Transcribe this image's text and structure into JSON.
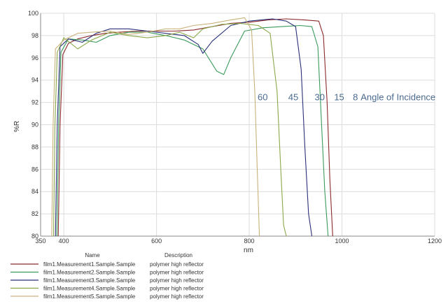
{
  "chart_data": {
    "type": "line",
    "title": "",
    "xlabel": "nm",
    "ylabel": "%R",
    "xlim": [
      350,
      1200
    ],
    "ylim": [
      80,
      100
    ],
    "xticks": [
      350,
      400,
      600,
      800,
      1000,
      1200
    ],
    "yticks": [
      80,
      82,
      84,
      86,
      88,
      90,
      92,
      94,
      96,
      98,
      100
    ],
    "grid": true,
    "legend_position": "bottom",
    "legend_headers": {
      "name": "Name",
      "description": "Description"
    },
    "annotations": [
      {
        "text": "60",
        "x": 829,
        "y": 92.5
      },
      {
        "text": "45",
        "x": 895,
        "y": 92.5
      },
      {
        "text": "30",
        "x": 952,
        "y": 92.5
      },
      {
        "text": "15",
        "x": 994,
        "y": 92.5
      },
      {
        "text": "8",
        "x": 1029,
        "y": 92.5
      },
      {
        "text": "Angle of Incidence",
        "x": 1121,
        "y": 92.5
      }
    ],
    "series": [
      {
        "name": "film1.Measurement1.Sample.Sample",
        "description": "polymer high reflector",
        "color": "#8b2a2a",
        "x": [
          388,
          392,
          398,
          410,
          430,
          460,
          490,
          520,
          560,
          600,
          640,
          680,
          720,
          760,
          800,
          840,
          880,
          920,
          950,
          960,
          968,
          974,
          980
        ],
        "y": [
          80,
          90,
          96.3,
          97.3,
          97.7,
          98.0,
          98.2,
          98.3,
          98.4,
          98.4,
          98.4,
          98.5,
          98.8,
          99.1,
          99.2,
          99.4,
          99.5,
          99.4,
          99.3,
          98,
          92,
          85,
          80
        ]
      },
      {
        "name": "film1.Measurement2.Sample.Sample",
        "description": "polymer high reflector",
        "color": "#3a9a5a",
        "x": [
          385,
          389,
          394,
          410,
          440,
          470,
          500,
          540,
          580,
          620,
          660,
          700,
          730,
          745,
          760,
          790,
          830,
          870,
          910,
          935,
          948,
          956,
          963,
          970
        ],
        "y": [
          80,
          90,
          96.5,
          97.7,
          97.6,
          97.4,
          98.0,
          98.3,
          98.3,
          98.0,
          97.6,
          96.8,
          94.8,
          94.5,
          96.0,
          98.4,
          98.7,
          98.8,
          98.9,
          98.8,
          97,
          90,
          84,
          80
        ]
      },
      {
        "name": "film1.Measurement3.Sample.Sample",
        "description": "polymer high reflector",
        "color": "#2a2f7a",
        "x": [
          382,
          386,
          392,
          410,
          440,
          470,
          500,
          540,
          580,
          620,
          660,
          690,
          700,
          720,
          760,
          800,
          850,
          880,
          900,
          912,
          920,
          928,
          935
        ],
        "y": [
          80,
          90,
          97.0,
          97.7,
          97.4,
          98.2,
          98.6,
          98.6,
          98.4,
          98.2,
          98.0,
          97.2,
          96.4,
          97.5,
          98.9,
          99.3,
          99.5,
          99.3,
          98.8,
          95,
          88,
          82,
          80
        ]
      },
      {
        "name": "film1.Measurement4.Sample.Sample",
        "description": "polymer high reflector",
        "color": "#8aa84a",
        "x": [
          378,
          381,
          386,
          400,
          430,
          460,
          500,
          540,
          580,
          620,
          650,
          680,
          700,
          740,
          780,
          820,
          845,
          860,
          868,
          874,
          880
        ],
        "y": [
          80,
          90,
          96.5,
          97.8,
          96.8,
          97.6,
          98.3,
          98.0,
          97.8,
          98.0,
          98.3,
          97.8,
          98.6,
          99.0,
          99.1,
          98.9,
          98.2,
          93,
          86,
          81,
          80
        ]
      },
      {
        "name": "film1.Measurement5.Sample.Sample",
        "description": "polymer high reflector",
        "color": "#c9b27a",
        "x": [
          374,
          377,
          382,
          400,
          430,
          460,
          500,
          540,
          580,
          620,
          650,
          680,
          720,
          760,
          790,
          805,
          812,
          818,
          822
        ],
        "y": [
          80,
          90,
          96.8,
          97.6,
          98.2,
          98.3,
          98.4,
          98.1,
          98.3,
          98.6,
          98.6,
          98.9,
          99.1,
          99.4,
          99.6,
          98.5,
          93,
          85,
          80
        ]
      }
    ]
  }
}
